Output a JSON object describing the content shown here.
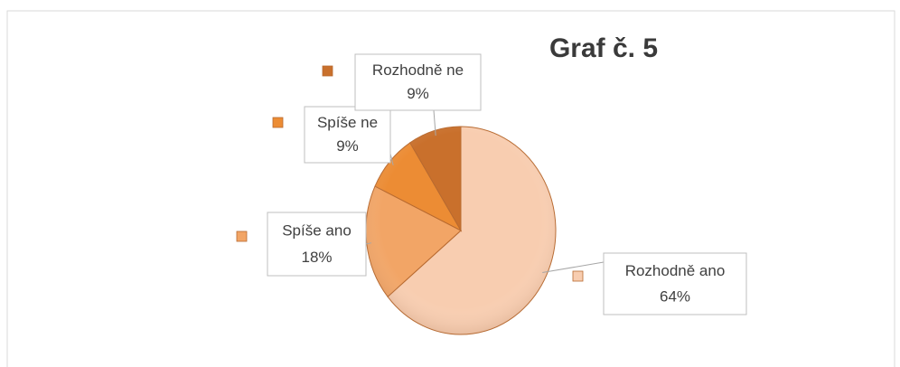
{
  "chart_data": {
    "type": "pie",
    "title": "Graf č. 5",
    "categories": [
      "Rozhodně ano",
      "Spíše ano",
      "Spíše ne",
      "Rozhodně ne"
    ],
    "values": [
      64,
      18,
      9,
      9
    ],
    "value_labels": [
      "64%",
      "18%",
      "9%",
      "9%"
    ],
    "colors": [
      "#f8cdb0",
      "#f2a566",
      "#ec8c34",
      "#c9702c"
    ]
  }
}
